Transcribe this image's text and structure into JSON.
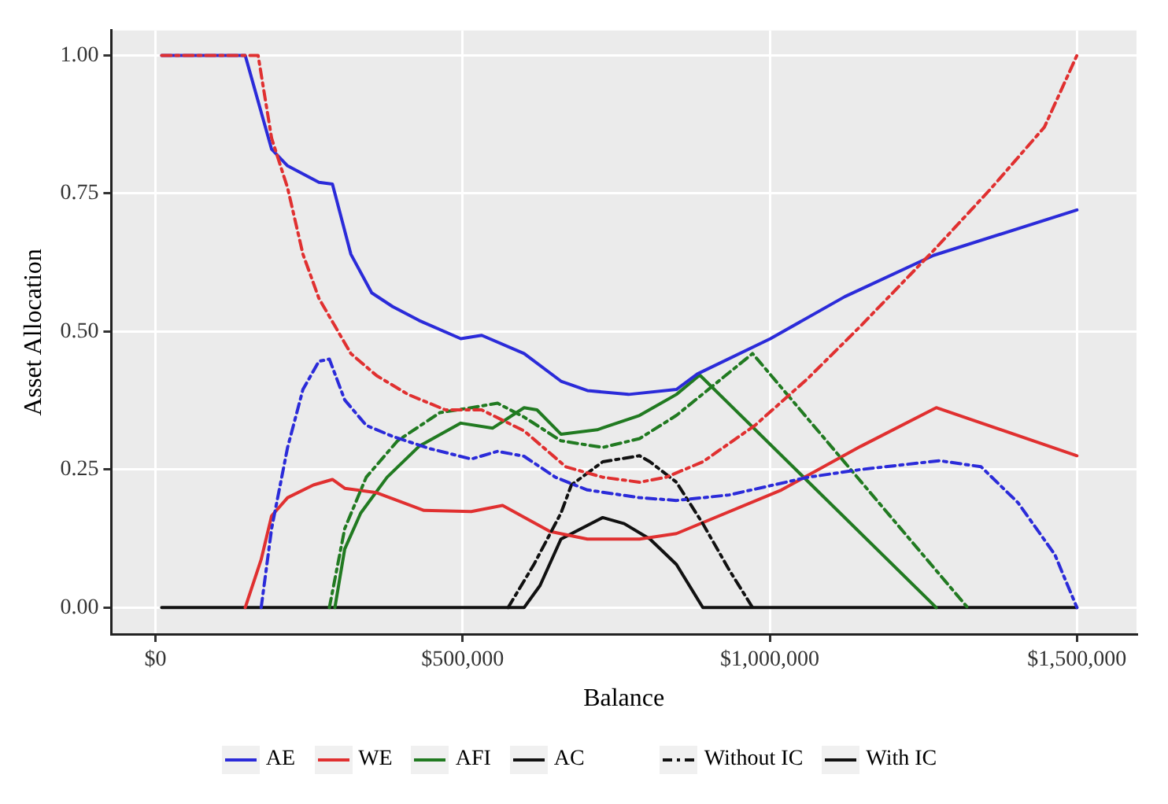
{
  "chart_data": {
    "type": "line",
    "xlabel": "Balance",
    "ylabel": "Asset Allocation",
    "xlim": [
      -72000,
      1597000
    ],
    "xticks": [
      {
        "value": 0,
        "label": "$0"
      },
      {
        "value": 500000,
        "label": "$500,000"
      },
      {
        "value": 1000000,
        "label": "$1,000,000"
      },
      {
        "value": 1500000,
        "label": "$1,500,000"
      }
    ],
    "ylim": [
      -0.048,
      1.045
    ],
    "yticks": [
      {
        "value": 0,
        "label": "0.00"
      },
      {
        "value": 0.25,
        "label": "0.25"
      },
      {
        "value": 0.5,
        "label": "0.50"
      },
      {
        "value": 0.75,
        "label": "0.75"
      },
      {
        "value": 1,
        "label": "1.00"
      }
    ],
    "grid": true,
    "legend": "bottom",
    "marker": "none",
    "annotations": [
      "Without IC",
      "With IC"
    ],
    "series": [
      {
        "name": "AE",
        "color": "#2b2bd9",
        "line_style": "solid",
        "x": [
          10000,
          146000,
          189000,
          215000,
          266000,
          288000,
          318000,
          352000,
          386000,
          429000,
          497000,
          531000,
          600000,
          660000,
          703000,
          770000,
          848000,
          882000,
          1001000,
          1122000,
          1267000,
          1500000
        ],
        "values": [
          1.0,
          1.0,
          0.83,
          0.8,
          0.77,
          0.767,
          0.64,
          0.57,
          0.545,
          0.52,
          0.487,
          0.493,
          0.46,
          0.41,
          0.393,
          0.386,
          0.395,
          0.423,
          0.487,
          0.563,
          0.638,
          0.72
        ]
      },
      {
        "name": "WE",
        "color": "#e03030",
        "line_style": "solid",
        "x": [
          146000,
          172000,
          189000,
          215000,
          257000,
          288000,
          308000,
          360000,
          437000,
          514000,
          565000,
          642000,
          703000,
          788000,
          848000,
          1019000,
          1148000,
          1271000,
          1500000
        ],
        "values": [
          0,
          0.087,
          0.166,
          0.199,
          0.222,
          0.232,
          0.216,
          0.208,
          0.176,
          0.174,
          0.185,
          0.138,
          0.124,
          0.124,
          0.134,
          0.213,
          0.292,
          0.362,
          0.275
        ]
      },
      {
        "name": "AFI",
        "color": "#217a21",
        "line_style": "solid",
        "x": [
          292000,
          308000,
          334000,
          377000,
          429000,
          497000,
          549000,
          600000,
          621000,
          660000,
          719000,
          788000,
          848000,
          886000,
          1271000
        ],
        "values": [
          0,
          0.106,
          0.171,
          0.236,
          0.292,
          0.334,
          0.325,
          0.362,
          0.358,
          0.314,
          0.322,
          0.348,
          0.386,
          0.421,
          0
        ]
      },
      {
        "name": "AC",
        "color": "#111111",
        "line_style": "solid",
        "x": [
          10000,
          600000,
          626000,
          660000,
          728000,
          763000,
          805000,
          848000,
          891000,
          1500000
        ],
        "values": [
          0,
          0,
          0.04,
          0.124,
          0.163,
          0.152,
          0.124,
          0.078,
          0,
          0
        ]
      },
      {
        "color": "#2b2bd9",
        "line_style": "dashed",
        "x": [
          172000,
          189000,
          215000,
          240000,
          266000,
          283000,
          308000,
          343000,
          386000,
          446000,
          514000,
          557000,
          600000,
          651000,
          703000,
          788000,
          848000,
          934000,
          1062000,
          1148000,
          1276000,
          1344000,
          1404000,
          1464000,
          1500000
        ],
        "values": [
          0,
          0.143,
          0.29,
          0.395,
          0.446,
          0.45,
          0.376,
          0.33,
          0.31,
          0.288,
          0.269,
          0.283,
          0.274,
          0.236,
          0.213,
          0.199,
          0.194,
          0.204,
          0.236,
          0.25,
          0.266,
          0.255,
          0.19,
          0.096,
          0
        ]
      },
      {
        "color": "#e03030",
        "line_style": "dashed",
        "x": [
          10000,
          167000,
          189000,
          215000,
          240000,
          266000,
          292000,
          318000,
          360000,
          411000,
          472000,
          531000,
          600000,
          668000,
          728000,
          788000,
          831000,
          891000,
          976000,
          1062000,
          1148000,
          1267000,
          1361000,
          1447000,
          1500000
        ],
        "values": [
          1.0,
          1.0,
          0.85,
          0.76,
          0.64,
          0.56,
          0.51,
          0.46,
          0.42,
          0.386,
          0.358,
          0.358,
          0.32,
          0.255,
          0.236,
          0.227,
          0.236,
          0.264,
          0.33,
          0.415,
          0.51,
          0.647,
          0.76,
          0.87,
          1.0
        ]
      },
      {
        "color": "#217a21",
        "line_style": "dashed",
        "x": [
          283000,
          308000,
          343000,
          394000,
          463000,
          514000,
          557000,
          600000,
          660000,
          728000,
          788000,
          848000,
          972000,
          1322000
        ],
        "values": [
          0,
          0.143,
          0.236,
          0.302,
          0.353,
          0.362,
          0.37,
          0.345,
          0.302,
          0.29,
          0.306,
          0.348,
          0.46,
          0
        ]
      },
      {
        "color": "#111111",
        "line_style": "dashed",
        "x": [
          574000,
          616000,
          660000,
          677000,
          728000,
          788000,
          805000,
          848000,
          891000,
          934000,
          972000
        ],
        "values": [
          0,
          0.078,
          0.171,
          0.222,
          0.264,
          0.275,
          0.264,
          0.227,
          0.152,
          0.068,
          0
        ]
      }
    ]
  }
}
